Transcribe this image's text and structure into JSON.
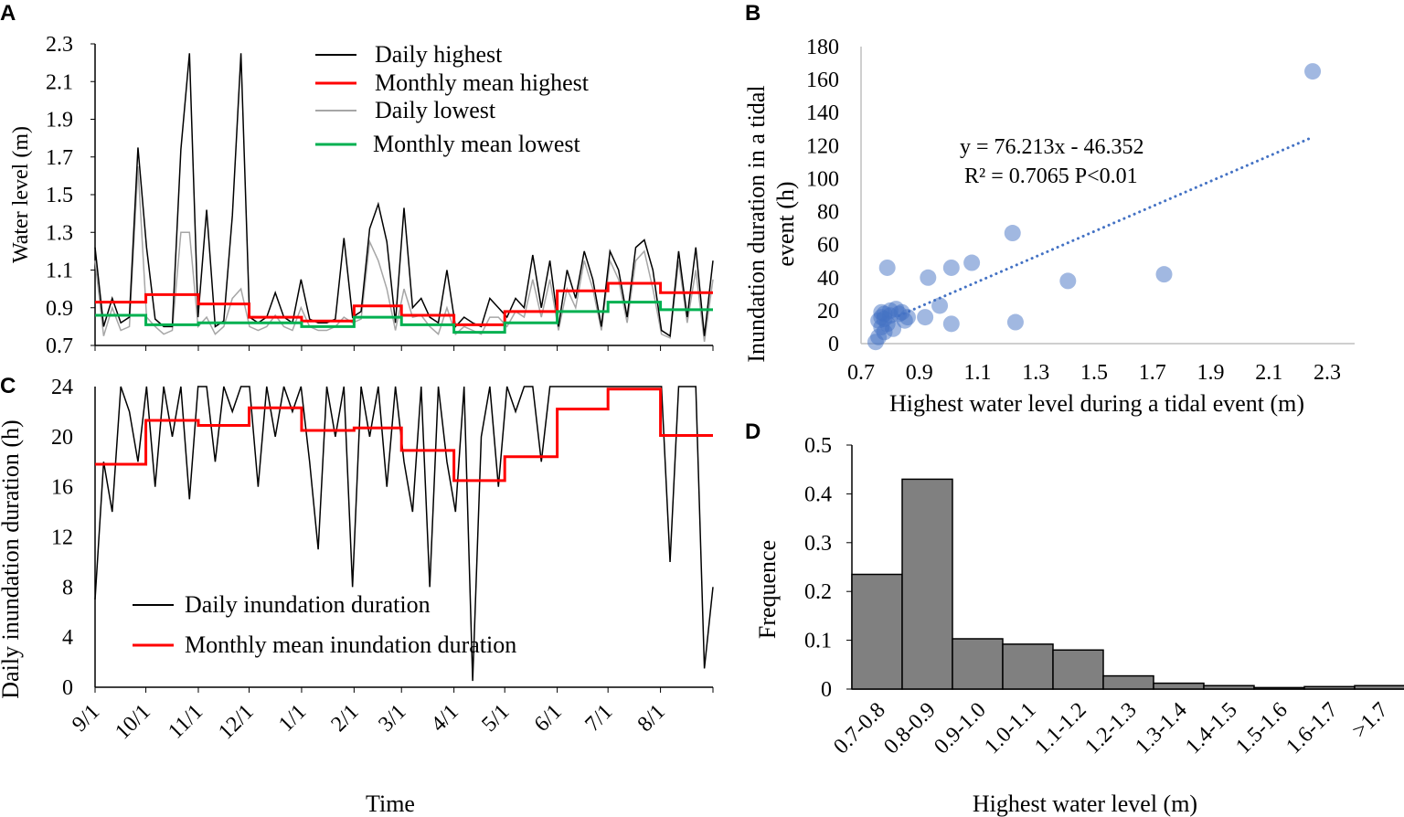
{
  "chart_data": [
    {
      "panel": "A",
      "type": "line",
      "ylabel": "Water level (m)",
      "ylim": [
        0.7,
        2.3
      ],
      "yticks": [
        "2.3",
        "2.1",
        "1.9",
        "1.7",
        "1.5",
        "1.3",
        "1.1",
        "0.9",
        "0.7"
      ],
      "month_boundaries_days": [
        0,
        30,
        61,
        91,
        122,
        153,
        181,
        212,
        242,
        273,
        303,
        334,
        365
      ],
      "legend": [
        "Daily highest",
        "Monthly mean highest",
        "Daily lowest",
        "Monthly mean lowest"
      ],
      "colors": {
        "daily_highest": "#000000",
        "monthly_highest": "#ff0000",
        "daily_lowest": "#a6a6a6",
        "monthly_lowest": "#00b050"
      },
      "daily_highest_5day": [
        1.22,
        0.8,
        0.95,
        0.82,
        0.85,
        1.75,
        1.22,
        0.84,
        0.8,
        0.8,
        1.74,
        2.25,
        0.85,
        1.42,
        0.8,
        0.83,
        1.39,
        2.25,
        0.85,
        0.82,
        0.85,
        0.98,
        0.85,
        0.82,
        1.05,
        0.84,
        0.82,
        0.82,
        0.84,
        1.27,
        0.85,
        0.88,
        1.32,
        1.45,
        1.25,
        0.82,
        1.43,
        0.9,
        0.95,
        0.85,
        0.82,
        1.1,
        0.8,
        0.85,
        0.82,
        0.8,
        0.95,
        0.9,
        0.85,
        0.95,
        0.9,
        1.18,
        0.9,
        1.15,
        0.8,
        1.1,
        0.95,
        1.2,
        1.05,
        0.8,
        1.2,
        1.1,
        0.85,
        1.22,
        1.26,
        1.1,
        0.78,
        0.75,
        1.2,
        0.85,
        1.22,
        0.75,
        1.15
      ],
      "daily_lowest_5day": [
        1.15,
        0.75,
        0.9,
        0.78,
        0.8,
        1.65,
        0.85,
        0.8,
        0.76,
        0.78,
        1.3,
        1.3,
        0.8,
        0.85,
        0.76,
        0.8,
        0.95,
        1.0,
        0.8,
        0.78,
        0.8,
        0.86,
        0.8,
        0.78,
        0.9,
        0.8,
        0.78,
        0.78,
        0.8,
        0.85,
        0.82,
        0.84,
        1.25,
        1.15,
        1.0,
        0.78,
        1.0,
        0.85,
        0.86,
        0.8,
        0.76,
        0.9,
        0.76,
        0.8,
        0.78,
        0.76,
        0.85,
        0.85,
        0.8,
        0.88,
        0.85,
        1.05,
        0.85,
        1.05,
        0.78,
        1.0,
        0.9,
        1.15,
        1.0,
        0.78,
        1.15,
        1.05,
        0.82,
        1.15,
        1.2,
        1.0,
        0.76,
        0.74,
        1.15,
        0.82,
        1.1,
        0.72,
        1.05
      ],
      "monthly_mean_highest": [
        0.93,
        0.97,
        0.92,
        0.85,
        0.83,
        0.91,
        0.86,
        0.81,
        0.88,
        0.99,
        1.03,
        0.98
      ],
      "monthly_mean_lowest": [
        0.86,
        0.81,
        0.82,
        0.82,
        0.8,
        0.85,
        0.81,
        0.77,
        0.82,
        0.88,
        0.93,
        0.89
      ]
    },
    {
      "panel": "B",
      "type": "scatter",
      "xlabel": "Highest water level during a tidal event (m)",
      "ylabel_lines": [
        "Inundation duration in a tidal",
        "event (h)"
      ],
      "xlim": [
        0.7,
        2.3
      ],
      "ylim": [
        0,
        180
      ],
      "xticks": [
        "0.7",
        "0.9",
        "1.1",
        "1.3",
        "1.5",
        "1.7",
        "1.9",
        "2.1",
        "2.3"
      ],
      "yticks": [
        "180",
        "160",
        "140",
        "120",
        "100",
        "80",
        "60",
        "40",
        "20",
        "0"
      ],
      "equation": "y = 76.213x - 46.352",
      "stats": "R² = 0.7065   P<0.01",
      "trend": {
        "slope": 76.213,
        "intercept": -46.352,
        "x_range": [
          0.83,
          2.25
        ]
      },
      "color": "#4472c4",
      "points": [
        [
          2.25,
          165
        ],
        [
          1.74,
          42
        ],
        [
          1.41,
          38
        ],
        [
          1.22,
          67
        ],
        [
          1.23,
          13
        ],
        [
          1.08,
          49
        ],
        [
          1.01,
          46
        ],
        [
          0.93,
          40
        ],
        [
          1.01,
          12
        ],
        [
          0.97,
          23
        ],
        [
          0.79,
          46
        ],
        [
          0.92,
          16
        ],
        [
          0.86,
          16
        ],
        [
          0.85,
          14
        ],
        [
          0.84,
          19
        ],
        [
          0.82,
          21
        ],
        [
          0.8,
          20
        ],
        [
          0.78,
          18
        ],
        [
          0.77,
          16
        ],
        [
          0.76,
          14
        ],
        [
          0.77,
          10
        ],
        [
          0.78,
          7
        ],
        [
          0.76,
          4
        ],
        [
          0.75,
          1
        ],
        [
          0.79,
          12
        ],
        [
          0.81,
          9
        ],
        [
          0.8,
          17
        ],
        [
          0.83,
          18
        ],
        [
          0.78,
          15
        ],
        [
          0.77,
          19
        ]
      ]
    },
    {
      "panel": "C",
      "type": "line",
      "xlabel": "Time",
      "ylabel": "Daily inundation duration (h)",
      "ylim": [
        0,
        24
      ],
      "yticks": [
        "24",
        "20",
        "16",
        "12",
        "8",
        "4",
        "0"
      ],
      "xticks": [
        "9/1",
        "10/1",
        "11/1",
        "12/1",
        "1/1",
        "2/1",
        "3/1",
        "4/1",
        "5/1",
        "6/1",
        "7/1",
        "8/1"
      ],
      "legend": [
        "Daily inundation duration",
        "Monthly mean inundation duration"
      ],
      "daily_5day": [
        7,
        18,
        14,
        24,
        22,
        18,
        24,
        16,
        24,
        20,
        24,
        15,
        24,
        24,
        18,
        24,
        22,
        24,
        24,
        16,
        24,
        20,
        24,
        22,
        24,
        18,
        11,
        24,
        20,
        24,
        8,
        24,
        20,
        24,
        16,
        24,
        18,
        14,
        24,
        8,
        24,
        18,
        14,
        24,
        0.5,
        20,
        24,
        16,
        24,
        22,
        24,
        24,
        18,
        24,
        24,
        24,
        24,
        24,
        24,
        24,
        24,
        24,
        24,
        24,
        24,
        24,
        24,
        10,
        24,
        24,
        24,
        1.5,
        8
      ],
      "monthly_mean": [
        17.8,
        21.3,
        20.9,
        22.3,
        20.5,
        20.7,
        18.9,
        16.5,
        18.4,
        22.2,
        23.8,
        20.1
      ]
    },
    {
      "panel": "D",
      "type": "bar",
      "xlabel": "Highest water level (m)",
      "ylabel": "Frequence",
      "ylim": [
        0,
        0.5
      ],
      "yticks": [
        "0.5",
        "0.4",
        "0.3",
        "0.2",
        "0.1",
        "0"
      ],
      "categories": [
        "0.7-0.8",
        "0.8-0.9",
        "0.9-1.0",
        "1.0-1.1",
        "1.1-1.2",
        "1.2-1.3",
        "1.3-1.4",
        "1.4-1.5",
        "1.5-1.6",
        "1.6-1.7",
        ">1.7"
      ],
      "values": [
        0.235,
        0.43,
        0.103,
        0.092,
        0.08,
        0.027,
        0.012,
        0.007,
        0.003,
        0.005,
        0.007
      ],
      "color": "#808080"
    }
  ],
  "panel_labels": [
    "A",
    "B",
    "C",
    "D"
  ]
}
